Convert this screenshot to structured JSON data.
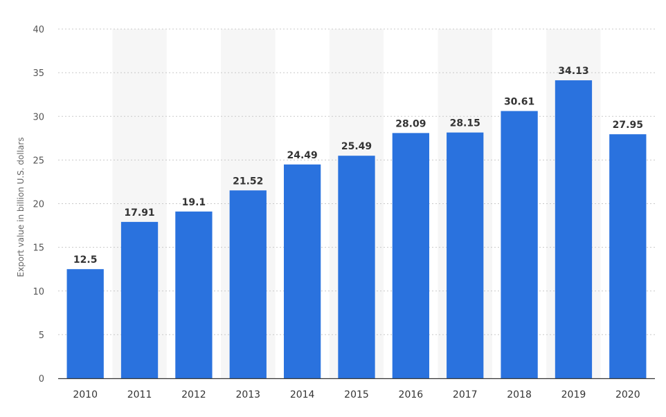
{
  "chart_data": {
    "type": "bar",
    "title": "",
    "xlabel": "",
    "ylabel": "Export value in billion U.S. dollars",
    "categories": [
      "2010",
      "2011",
      "2012",
      "2013",
      "2014",
      "2015",
      "2016",
      "2017",
      "2018",
      "2019",
      "2020"
    ],
    "values": [
      12.5,
      17.91,
      19.1,
      21.52,
      24.49,
      25.49,
      28.09,
      28.15,
      30.61,
      34.13,
      27.95
    ],
    "value_labels": [
      "12.5",
      "17.91",
      "19.1",
      "21.52",
      "24.49",
      "25.49",
      "28.09",
      "28.15",
      "30.61",
      "34.13",
      "27.95"
    ],
    "ylim": [
      0,
      40
    ],
    "yticks": [
      0,
      5,
      10,
      15,
      20,
      25,
      30,
      35,
      40
    ],
    "grid": true,
    "bar_color": "#2a72de",
    "band_color": "#f6f6f6"
  }
}
